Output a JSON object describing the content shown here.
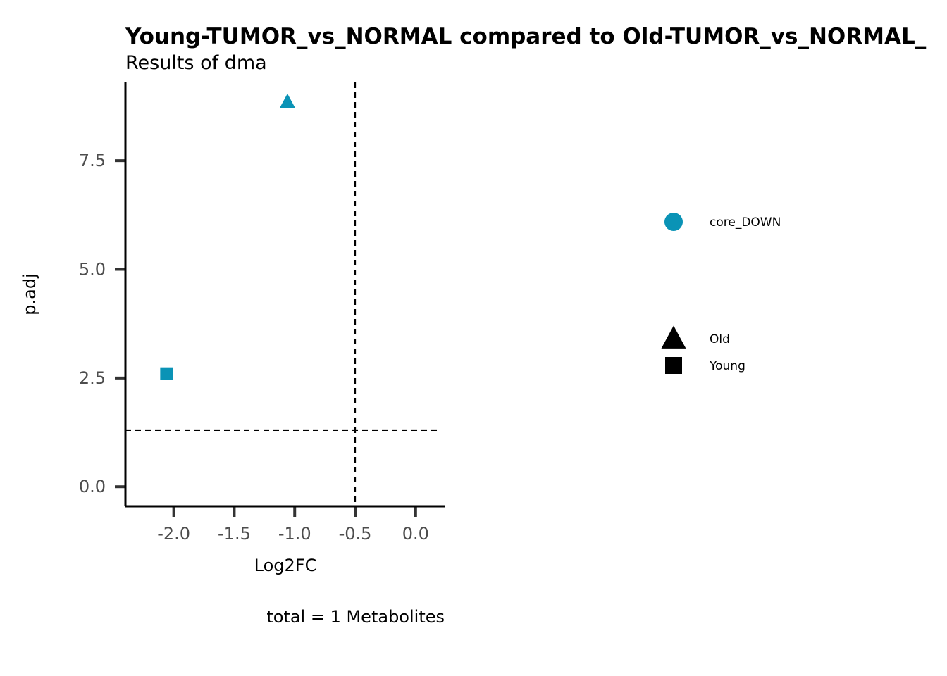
{
  "chart_data": {
    "type": "scatter",
    "title": "Young-TUMOR_vs_NORMAL compared to Old-TUMOR_vs_NORMAL_",
    "subtitle": "Results of dma",
    "xlabel": "Log2FC",
    "ylabel": "p.adj",
    "caption": "total = 1 Metabolites",
    "xlim": [
      -2.4,
      0.24
    ],
    "ylim": [
      -0.45,
      9.3
    ],
    "x_ticks": [
      -2.0,
      -1.5,
      -1.0,
      -0.5,
      0.0
    ],
    "x_tick_labels": [
      "-2.0",
      "-1.5",
      "-1.0",
      "-0.5",
      "0.0"
    ],
    "y_ticks": [
      0.0,
      2.5,
      5.0,
      7.5
    ],
    "y_tick_labels": [
      "0.0",
      "2.5",
      "5.0",
      "7.5"
    ],
    "vline_x": -0.5,
    "hline_y": 1.3,
    "points": [
      {
        "x": -1.06,
        "y": 8.85,
        "color_group": "core_DOWN",
        "shape_group": "Old"
      },
      {
        "x": -2.06,
        "y": 2.6,
        "color_group": "core_DOWN",
        "shape_group": "Young"
      }
    ],
    "legend_placement": "right",
    "legend_color": [
      {
        "label": "core_DOWN",
        "color": "#0a93b6"
      }
    ],
    "legend_shape": [
      {
        "label": "Old",
        "shape": "triangle"
      },
      {
        "label": "Young",
        "shape": "square"
      }
    ],
    "grid": false
  },
  "colors": {
    "core_DOWN": "#0a93b6",
    "axis": "#000000",
    "ticks": "#333333"
  }
}
